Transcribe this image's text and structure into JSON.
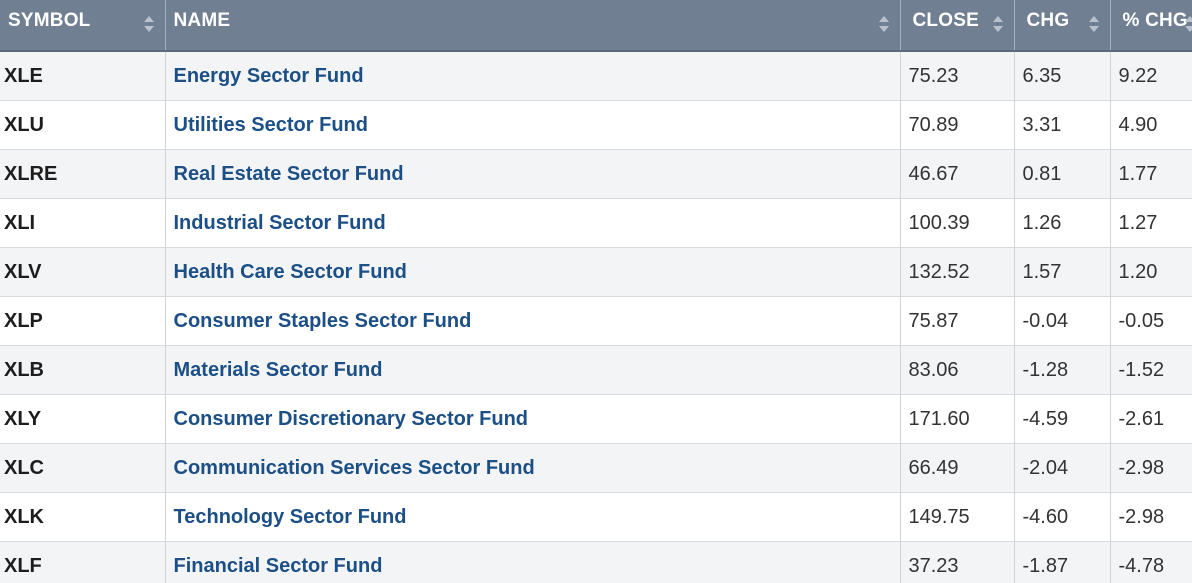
{
  "table": {
    "headers": {
      "symbol": "SYMBOL",
      "name": "NAME",
      "close": "CLOSE",
      "chg": "CHG",
      "pct_chg": "% CHG"
    },
    "rows": [
      {
        "symbol": "XLE",
        "name": "Energy Sector Fund",
        "close": "75.23",
        "chg": "6.35",
        "pct_chg": "9.22"
      },
      {
        "symbol": "XLU",
        "name": "Utilities Sector Fund",
        "close": "70.89",
        "chg": "3.31",
        "pct_chg": "4.90"
      },
      {
        "symbol": "XLRE",
        "name": "Real Estate Sector Fund",
        "close": "46.67",
        "chg": "0.81",
        "pct_chg": "1.77"
      },
      {
        "symbol": "XLI",
        "name": "Industrial Sector Fund",
        "close": "100.39",
        "chg": "1.26",
        "pct_chg": "1.27"
      },
      {
        "symbol": "XLV",
        "name": "Health Care Sector Fund",
        "close": "132.52",
        "chg": "1.57",
        "pct_chg": "1.20"
      },
      {
        "symbol": "XLP",
        "name": "Consumer Staples Sector Fund",
        "close": "75.87",
        "chg": "-0.04",
        "pct_chg": "-0.05"
      },
      {
        "symbol": "XLB",
        "name": "Materials Sector Fund",
        "close": "83.06",
        "chg": "-1.28",
        "pct_chg": "-1.52"
      },
      {
        "symbol": "XLY",
        "name": "Consumer Discretionary Sector Fund",
        "close": "171.60",
        "chg": "-4.59",
        "pct_chg": "-2.61"
      },
      {
        "symbol": "XLC",
        "name": "Communication Services Sector Fund",
        "close": "66.49",
        "chg": "-2.04",
        "pct_chg": "-2.98"
      },
      {
        "symbol": "XLK",
        "name": "Technology Sector Fund",
        "close": "149.75",
        "chg": "-4.60",
        "pct_chg": "-2.98"
      },
      {
        "symbol": "XLF",
        "name": "Financial Sector Fund",
        "close": "37.23",
        "chg": "-1.87",
        "pct_chg": "-4.78"
      }
    ]
  },
  "colors": {
    "header_bg": "#717f92",
    "link": "#1b4f86",
    "row_alt": "#f3f4f6"
  },
  "icons": {
    "sort": "sort-icon"
  }
}
